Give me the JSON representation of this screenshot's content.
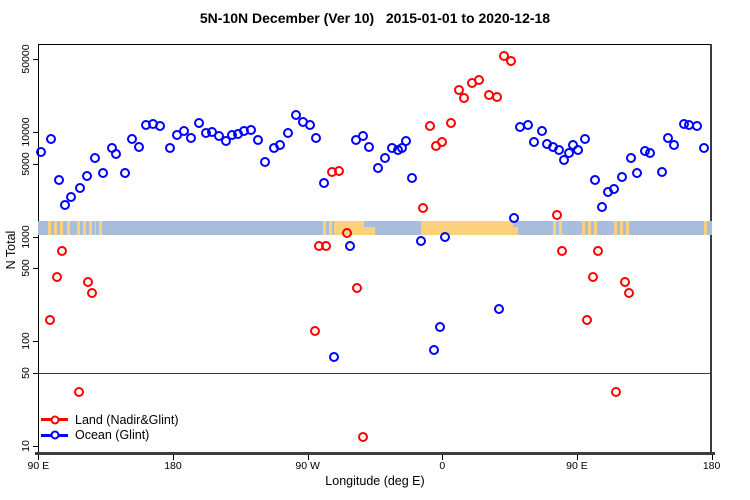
{
  "chart_data": {
    "type": "scatter",
    "title": "5N-10N December (Ver 10)   2015-01-01 to 2020-12-18",
    "xlabel": "Longitude (deg E)",
    "ylabel": "N Total",
    "x_axis": {
      "note": "longitude axis spans 450 deg, wrapping eastward from 90E to 180",
      "range": [
        -270,
        180
      ],
      "ticks": [
        -270,
        -180,
        -90,
        0,
        90,
        180
      ],
      "tick_labels": [
        "90 E",
        "180",
        "90 W",
        "0",
        "90 E",
        "180"
      ]
    },
    "y_axis": {
      "scale": "log",
      "range": [
        9,
        62000
      ],
      "ticks": [
        10,
        50,
        100,
        500,
        1000,
        5000,
        10000,
        50000
      ],
      "tick_labels": [
        "10",
        "50",
        "100",
        "500",
        "1000",
        "5000",
        "10000",
        "50000"
      ]
    },
    "reference_line": {
      "y": 50,
      "color": "#3a3a3a"
    },
    "map_strip": {
      "description": "world land/ocean strip for 5N-10N overlaid on plot",
      "n_top": 1410,
      "n_bottom": 1040,
      "ocean_color": "#a9bedd",
      "land_color": "#fcd17e",
      "land_patches": [
        [
          -263.5,
          -253,
          "speckled"
        ],
        [
          -251,
          -247,
          "speckled"
        ],
        [
          -244,
          -231.5,
          "speckled"
        ],
        [
          -229.5,
          -227.5,
          "speckled"
        ],
        [
          -79.5,
          -72.5,
          "speckled"
        ],
        [
          -72.5,
          -52,
          "solid"
        ],
        [
          -52,
          -45,
          "bottom"
        ],
        [
          -14.5,
          47,
          "solid"
        ],
        [
          47,
          50.5,
          "bottom"
        ],
        [
          74,
          81,
          "speckled"
        ],
        [
          93.5,
          104,
          "speckled"
        ],
        [
          115,
          124.5,
          "speckled"
        ],
        [
          175,
          178.5,
          "speckled"
        ]
      ]
    },
    "legend": [
      {
        "id": "land",
        "label": "Land (Nadir&Glint)",
        "color": "#ff0000"
      },
      {
        "id": "ocean",
        "label": "Ocean (Glint)",
        "color": "#0000ff"
      }
    ],
    "series": [
      {
        "id": "land",
        "name": "Land (Nadir&Glint)",
        "color": "#ff0000",
        "points": [
          [
            -262,
            160
          ],
          [
            -257.5,
            408
          ],
          [
            -254.2,
            735
          ],
          [
            -243,
            33
          ],
          [
            -236.8,
            371
          ],
          [
            -233.9,
            291
          ],
          [
            -85.3,
            126
          ],
          [
            -82.6,
            820
          ],
          [
            -77.9,
            820
          ],
          [
            -73.4,
            4130
          ],
          [
            -69,
            4260
          ],
          [
            -63.9,
            1085
          ],
          [
            -57,
            325
          ],
          [
            -53.2,
            12
          ],
          [
            -12.9,
            1870
          ],
          [
            -8,
            11500
          ],
          [
            -4,
            7430
          ],
          [
            0,
            8110
          ],
          [
            6,
            12200
          ],
          [
            11.1,
            25400
          ],
          [
            14.3,
            21400
          ],
          [
            20,
            29400
          ],
          [
            24.4,
            31600
          ],
          [
            31.4,
            22700
          ],
          [
            36.5,
            21900
          ],
          [
            41,
            54000
          ],
          [
            45.8,
            48000
          ],
          [
            77,
            1615
          ],
          [
            80.3,
            735
          ],
          [
            97,
            160
          ],
          [
            101,
            408
          ],
          [
            104.3,
            730
          ],
          [
            116,
            33
          ],
          [
            122.2,
            371
          ],
          [
            124.9,
            291
          ]
        ]
      },
      {
        "id": "ocean",
        "name": "Ocean (Glint)",
        "color": "#0000ff",
        "points": [
          [
            -268.4,
            6500
          ],
          [
            -261.7,
            8550
          ],
          [
            -256.4,
            3490
          ],
          [
            -252,
            2010
          ],
          [
            -248,
            2415
          ],
          [
            -242.4,
            2905
          ],
          [
            -237.3,
            3835
          ],
          [
            -231.9,
            5625
          ],
          [
            -226.8,
            4045
          ],
          [
            -220.8,
            7015
          ],
          [
            -217.9,
            6180
          ],
          [
            -211.9,
            4095
          ],
          [
            -207.4,
            8665
          ],
          [
            -202.8,
            7165
          ],
          [
            -198.3,
            11700
          ],
          [
            -193.4,
            11900
          ],
          [
            -188.5,
            11460
          ],
          [
            -182.3,
            7015
          ],
          [
            -177.2,
            9390
          ],
          [
            -172.9,
            10260
          ],
          [
            -167.9,
            8740
          ],
          [
            -162.7,
            12160
          ],
          [
            -158.2,
            9760
          ],
          [
            -153.8,
            9985
          ],
          [
            -149.4,
            9240
          ],
          [
            -144.5,
            8230
          ],
          [
            -140.5,
            9390
          ],
          [
            -136.7,
            9540
          ],
          [
            -132.2,
            10260
          ],
          [
            -127.8,
            10490
          ],
          [
            -123.3,
            8420
          ],
          [
            -118.6,
            5220
          ],
          [
            -112.6,
            7105
          ],
          [
            -108.6,
            7550
          ],
          [
            -103.1,
            9760
          ],
          [
            -97.9,
            14600
          ],
          [
            -93.1,
            12450
          ],
          [
            -88.6,
            11720
          ],
          [
            -84.1,
            8740
          ],
          [
            -79.3,
            3245
          ],
          [
            -72.4,
            71
          ],
          [
            -61.9,
            815
          ],
          [
            -57.9,
            8420
          ],
          [
            -53,
            9240
          ],
          [
            -49,
            7270
          ],
          [
            -43,
            4510
          ],
          [
            -38.5,
            5700
          ],
          [
            -33.4,
            7015
          ],
          [
            -29.6,
            6740
          ],
          [
            -26.7,
            7105
          ],
          [
            -24.5,
            8230
          ],
          [
            -20,
            3675
          ],
          [
            -14,
            915
          ],
          [
            -5.8,
            82
          ],
          [
            -1.8,
            136
          ],
          [
            1.5,
            1000
          ],
          [
            37.6,
            203
          ],
          [
            48.1,
            1520
          ],
          [
            52.1,
            11290
          ],
          [
            57,
            11720
          ],
          [
            61,
            8110
          ],
          [
            66.5,
            10260
          ],
          [
            70.3,
            7715
          ],
          [
            74.1,
            7270
          ],
          [
            77.7,
            6740
          ],
          [
            81.5,
            5420
          ],
          [
            84.8,
            6290
          ],
          [
            87.7,
            7550
          ],
          [
            90.8,
            6740
          ],
          [
            95.2,
            8550
          ],
          [
            101.9,
            3490
          ],
          [
            107,
            1935
          ],
          [
            110.8,
            2695
          ],
          [
            114.8,
            2860
          ],
          [
            119.9,
            3750
          ],
          [
            126.4,
            5625
          ],
          [
            130.4,
            4095
          ],
          [
            135.3,
            6675
          ],
          [
            138.9,
            6290
          ],
          [
            146.6,
            4135
          ],
          [
            151.1,
            8865
          ],
          [
            154.9,
            7550
          ],
          [
            161.6,
            11890
          ],
          [
            164.9,
            11720
          ],
          [
            170,
            11550
          ],
          [
            174.9,
            7015
          ]
        ]
      }
    ]
  }
}
